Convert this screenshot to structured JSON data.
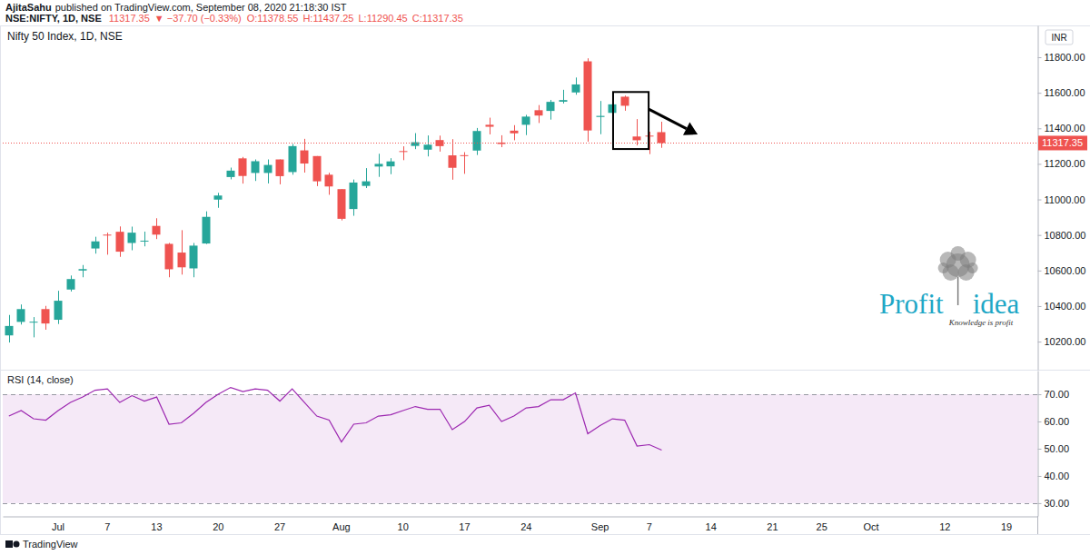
{
  "header": {
    "publisher": "AjitaSahu",
    "published": "published on TradingView.com, September 08, 2020 21:18:30 IST",
    "symbol": "NSE:NIFTY, 1D, NSE",
    "price": "11317.35",
    "change": "▼ −37.70 (−0.33%)",
    "ohlc": [
      "O:11378.55",
      "H:11437.25",
      "L:11290.45",
      "C:11317.35"
    ]
  },
  "currency": "INR",
  "watermark": {
    "left": "Profit",
    "right": "idea",
    "tagline": "Knowledge is profit"
  },
  "branding": "TradingView",
  "chart_data": [
    {
      "type": "candlestick",
      "title": "Nifty 50 Index, 1D, NSE",
      "categories": [
        null,
        null,
        null,
        null,
        "Jul",
        null,
        null,
        null,
        "7",
        null,
        null,
        null,
        "13",
        null,
        null,
        null,
        null,
        "20",
        null,
        null,
        null,
        null,
        "27",
        null,
        null,
        null,
        null,
        "Aug",
        null,
        null,
        null,
        null,
        "10",
        null,
        null,
        null,
        null,
        "17",
        null,
        null,
        null,
        null,
        "24",
        null,
        null,
        null,
        null,
        null,
        "Sep",
        null,
        null,
        null,
        "7",
        null,
        null,
        null,
        null,
        "14",
        null,
        null,
        null,
        null,
        "21",
        null,
        null,
        null,
        "25",
        null,
        null,
        null,
        "Oct",
        null,
        null,
        null,
        null,
        null,
        "12",
        null,
        null,
        null,
        null,
        "19",
        null,
        null
      ],
      "open": [
        10235,
        10311,
        10311,
        10383,
        10323,
        10493,
        10600,
        10724,
        10802,
        10818,
        10755,
        10764,
        10851,
        10750,
        10701,
        10612,
        10752,
        10999,
        11126,
        11231,
        11149,
        11149,
        11225,
        11154,
        11276,
        11244,
        11139,
        11058,
        10946,
        11076,
        11185,
        11186,
        11272,
        11301,
        11280,
        11334,
        11248,
        11249,
        11275,
        11420,
        11320,
        11387,
        11420,
        11502,
        11498,
        11550,
        11602,
        11777,
        11464,
        11487,
        11578,
        11354,
        11359,
        11378.55,
        null,
        null,
        null,
        null,
        null,
        null,
        null,
        null,
        null,
        null,
        null,
        null,
        null,
        null,
        null,
        null,
        null,
        null,
        null,
        null,
        null,
        null,
        null,
        null,
        null,
        null,
        null,
        null,
        null,
        null
      ],
      "high": [
        10350,
        10409,
        10338,
        10401,
        10486,
        10572,
        10631,
        10790,
        10813,
        10848,
        10847,
        10819,
        10894,
        10755,
        10827,
        10755,
        10933,
        11037,
        11179,
        11239,
        11225,
        11225,
        11225,
        11312,
        11341,
        11244,
        11150,
        11058,
        11112,
        11176,
        11257,
        11232,
        11299,
        11373,
        11360,
        11359,
        11339,
        11266,
        11402,
        11460,
        11361,
        11418,
        11476,
        11531,
        11560,
        11617,
        11686,
        11794,
        11554,
        11553,
        11584,
        11452,
        11381,
        11437.25,
        null,
        null,
        null,
        null,
        null,
        null,
        null,
        null,
        null,
        null,
        null,
        null,
        null,
        null,
        null,
        null,
        null,
        null,
        null,
        null,
        null,
        null,
        null,
        null,
        null,
        null,
        null,
        null,
        null,
        null
      ],
      "low": [
        10195,
        10296,
        10224,
        10267,
        10299,
        10482,
        10562,
        10695,
        10689,
        10677,
        10714,
        10736,
        10777,
        10562,
        10577,
        10562,
        10749,
        10953,
        11113,
        11089,
        11104,
        11090,
        11085,
        11139,
        11151,
        11075,
        11026,
        10882,
        10908,
        11064,
        11127,
        11142,
        11221,
        11283,
        11242,
        11269,
        11111,
        11144,
        11250,
        11366,
        11294,
        11333,
        11362,
        11430,
        11449,
        11540,
        11589,
        11325,
        11367,
        11450,
        11499,
        11304,
        11255,
        11290.45,
        null,
        null,
        null,
        null,
        null,
        null,
        null,
        null,
        null,
        null,
        null,
        null,
        null,
        null,
        null,
        null,
        null,
        null,
        null,
        null,
        null,
        null,
        null,
        null,
        null,
        null,
        null,
        null,
        null,
        null
      ],
      "close": [
        10288,
        10383,
        10312,
        10302,
        10430,
        10552,
        10608,
        10764,
        10800,
        10706,
        10813,
        10768,
        10802,
        10607,
        10618,
        10740,
        10902,
        11022,
        11162,
        11132,
        11215,
        11194,
        11131,
        11300,
        11202,
        11102,
        11073,
        10891,
        11095,
        11102,
        11200,
        11214,
        11270,
        11322,
        11308,
        11300,
        11178,
        11247,
        11385,
        11409,
        11312,
        11372,
        11466,
        11472,
        11549,
        11559,
        11647,
        11388,
        11470,
        11535,
        11527,
        11333,
        11355,
        11317.35,
        null,
        null,
        null,
        null,
        null,
        null,
        null,
        null,
        null,
        null,
        null,
        null,
        null,
        null,
        null,
        null,
        null,
        null,
        null,
        null,
        null,
        null,
        null,
        null,
        null,
        null,
        null,
        null,
        null,
        null
      ],
      "color": {
        "up": "#26a69a",
        "down": "#ef5350"
      },
      "ylim": [
        10042,
        11979
      ],
      "yticks": [
        {
          "value": 10200,
          "label": "10200.00"
        },
        {
          "value": 10400,
          "label": "10400.00"
        },
        {
          "value": 10600,
          "label": "10600.00"
        },
        {
          "value": 10800,
          "label": "10800.00"
        },
        {
          "value": 11000,
          "label": "11000.00"
        },
        {
          "value": 11200,
          "label": "11200.00"
        },
        {
          "value": 11400,
          "label": "11400.00"
        },
        {
          "value": 11600,
          "label": "11600.00"
        },
        {
          "value": 11800,
          "label": "11800.00"
        }
      ],
      "last_price": 11317.35,
      "highlight": {
        "from": 50,
        "to": 51
      },
      "grid": false,
      "tick_labels": "y"
    },
    {
      "type": "line",
      "title": "RSI (14, close)",
      "categories": [
        null,
        null,
        null,
        null,
        "Jul",
        null,
        null,
        null,
        "7",
        null,
        null,
        null,
        "13",
        null,
        null,
        null,
        null,
        "20",
        null,
        null,
        null,
        null,
        "27",
        null,
        null,
        null,
        null,
        "Aug",
        null,
        null,
        null,
        null,
        "10",
        null,
        null,
        null,
        null,
        "17",
        null,
        null,
        null,
        null,
        "24",
        null,
        null,
        null,
        null,
        null,
        "Sep",
        null,
        null,
        null,
        "7",
        null,
        null,
        null,
        null,
        "14",
        null,
        null,
        null,
        null,
        "21",
        null,
        null,
        null,
        "25",
        null,
        null,
        null,
        "Oct",
        null,
        null,
        null,
        null,
        null,
        "12",
        null,
        null,
        null,
        null,
        "19",
        null,
        null
      ],
      "values": [
        62,
        64,
        61,
        60.5,
        64,
        67,
        69,
        71.5,
        72,
        67,
        69.5,
        67.5,
        69,
        59,
        59.5,
        63,
        67,
        70,
        72.5,
        71,
        72,
        71.5,
        67.5,
        72,
        67,
        62,
        60.5,
        52.5,
        59,
        59.5,
        62,
        62.5,
        64,
        65.5,
        64.5,
        64.5,
        57,
        60,
        65,
        66,
        60,
        62,
        65,
        65.5,
        68,
        68,
        70.5,
        55.5,
        58.5,
        61,
        60.5,
        51,
        51.5,
        49.5,
        null,
        null,
        null,
        null,
        null,
        null,
        null,
        null,
        null,
        null,
        null,
        null,
        null,
        null,
        null,
        null,
        null,
        null,
        null,
        null,
        null,
        null,
        null,
        null,
        null,
        null,
        null,
        null,
        null,
        null
      ],
      "color": "#9c27b0",
      "band": [
        30,
        70
      ],
      "ylim": [
        25.3,
        78.7
      ],
      "yticks": [
        {
          "value": 30,
          "label": "30.00"
        },
        {
          "value": 40,
          "label": "40.00"
        },
        {
          "value": 50,
          "label": "50.00"
        },
        {
          "value": 60,
          "label": "60.00"
        },
        {
          "value": 70,
          "label": "70.00"
        }
      ],
      "grid": false
    }
  ]
}
